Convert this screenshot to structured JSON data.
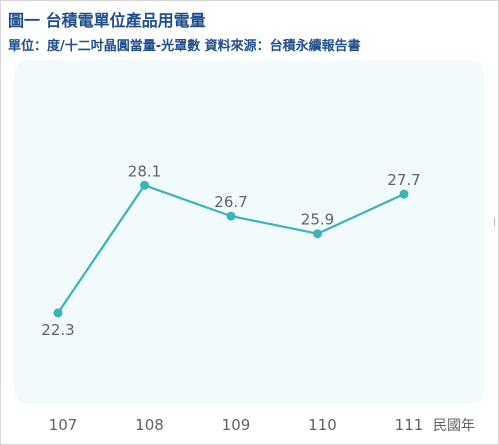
{
  "header": {
    "title": "圖一  台積電單位產品用電量",
    "subtitle": "單位：度/十二吋晶圓當量-光罩數   資料來源：台積永續報告書"
  },
  "chart_data": {
    "type": "line",
    "categories": [
      "107",
      "108",
      "109",
      "110",
      "111"
    ],
    "series": [
      {
        "values": [
          22.3,
          28.1,
          26.7,
          25.9,
          27.7
        ]
      }
    ],
    "xlabel": "民國年",
    "ylabel": "",
    "ylim": [
      20,
      30
    ],
    "grid": false,
    "line_color": "#3bb3b9",
    "plot_background": "#f2fbfb"
  }
}
